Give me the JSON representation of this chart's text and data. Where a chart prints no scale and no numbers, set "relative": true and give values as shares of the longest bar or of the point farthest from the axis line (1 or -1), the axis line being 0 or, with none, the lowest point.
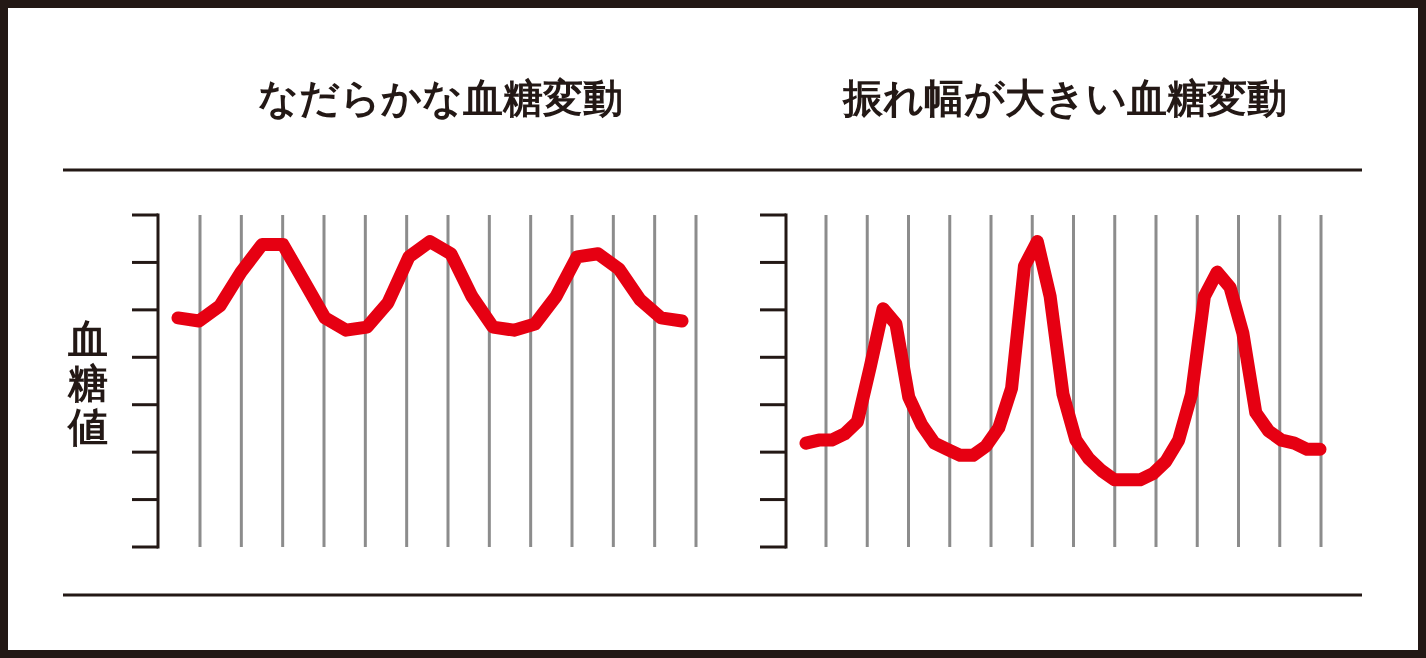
{
  "chart_data": [
    {
      "type": "line",
      "title": "なだらかな血糖変動",
      "ylabel": "血糖値",
      "relative": true,
      "grid": "x",
      "marker": "none",
      "line_style": "solid",
      "categories": [
        null,
        null,
        null,
        null,
        null,
        null,
        null,
        null,
        null,
        null,
        null,
        null,
        null,
        null,
        null,
        null,
        null,
        null,
        null,
        null,
        null,
        null,
        null,
        null,
        null
      ],
      "series": [
        {
          "color": "#e60012",
          "values": [
            0.75,
            0.74,
            0.79,
            0.9,
            0.99,
            0.99,
            0.87,
            0.75,
            0.71,
            0.72,
            0.8,
            0.95,
            1.0,
            0.96,
            0.82,
            0.72,
            0.71,
            0.73,
            0.82,
            0.95,
            0.96,
            0.91,
            0.81,
            0.75,
            0.74
          ]
        }
      ]
    },
    {
      "type": "line",
      "title": "振れ幅が大きい血糖変動",
      "relative": true,
      "grid": "x",
      "marker": "none",
      "line_style": "solid",
      "categories": [
        null,
        null,
        null,
        null,
        null,
        null,
        null,
        null,
        null,
        null,
        null,
        null,
        null,
        null,
        null,
        null,
        null,
        null,
        null,
        null,
        null,
        null,
        null,
        null,
        null,
        null,
        null,
        null,
        null,
        null,
        null,
        null,
        null,
        null,
        null,
        null,
        null,
        null,
        null,
        null,
        null
      ],
      "series": [
        {
          "color": "#e60012",
          "values": [
            0.34,
            0.35,
            0.35,
            0.37,
            0.41,
            0.59,
            0.78,
            0.73,
            0.49,
            0.4,
            0.34,
            0.32,
            0.3,
            0.3,
            0.33,
            0.39,
            0.52,
            0.92,
            1.0,
            0.82,
            0.5,
            0.35,
            0.29,
            0.25,
            0.22,
            0.22,
            0.22,
            0.24,
            0.28,
            0.35,
            0.5,
            0.82,
            0.9,
            0.85,
            0.7,
            0.44,
            0.38,
            0.35,
            0.34,
            0.32,
            0.32
          ]
        }
      ]
    }
  ]
}
